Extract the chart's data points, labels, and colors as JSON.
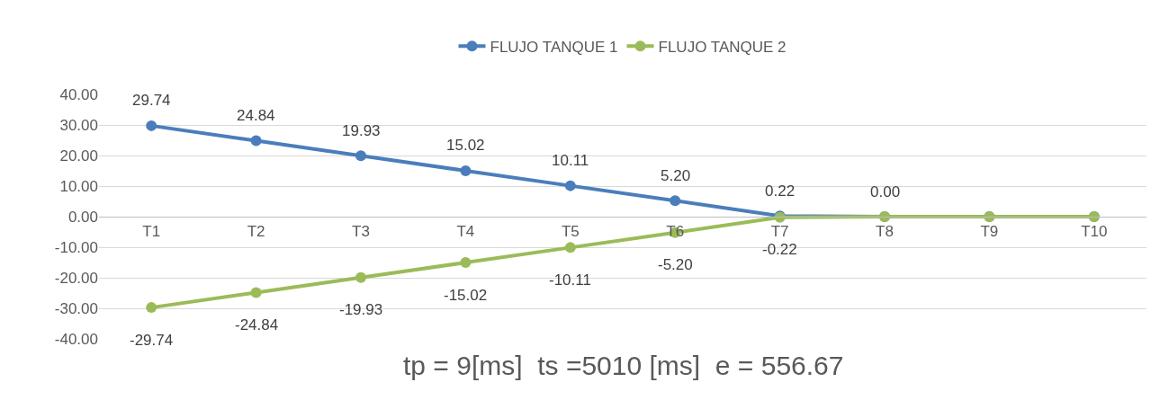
{
  "chart_data": {
    "type": "line",
    "categories": [
      "T1",
      "T2",
      "T3",
      "T4",
      "T5",
      "T6",
      "T7",
      "T8",
      "T9",
      "T10"
    ],
    "series": [
      {
        "name": "FLUJO TANQUE 1",
        "color": "#4a7ebb",
        "values": [
          29.74,
          24.84,
          19.93,
          15.02,
          10.11,
          5.2,
          0.22,
          0,
          0,
          0
        ],
        "value_labels": [
          "29.74",
          "24.84",
          "19.93",
          "15.02",
          "10.11",
          "5.20",
          "0.22",
          "0.00",
          null,
          null
        ]
      },
      {
        "name": "FLUJO TANQUE 2",
        "color": "#9bbb59",
        "values": [
          -29.74,
          -24.84,
          -19.93,
          -15.02,
          -10.11,
          -5.2,
          -0.22,
          0,
          0,
          0
        ],
        "value_labels": [
          "-29.74",
          "-24.84",
          "-19.93",
          "-15.02",
          "-10.11",
          "-5.20",
          "-0.22",
          null,
          null,
          null
        ]
      }
    ],
    "ylim": [
      -40,
      40
    ],
    "yticks": [
      {
        "value": -40,
        "label": "-40.00"
      },
      {
        "value": -30,
        "label": "-30.00"
      },
      {
        "value": -20,
        "label": "-20.00"
      },
      {
        "value": -10,
        "label": "-10.00"
      },
      {
        "value": 0,
        "label": "0.00"
      },
      {
        "value": 10,
        "label": "10.00"
      },
      {
        "value": 20,
        "label": "20.00"
      },
      {
        "value": 30,
        "label": "30.00"
      },
      {
        "value": 40,
        "label": "40.00"
      }
    ],
    "grid": "y",
    "legend": "top",
    "marker": "circle",
    "line_style": "solid",
    "annotations": [
      "tp = 9[ms]  ts =5010 [ms]  e = 556.67"
    ]
  }
}
